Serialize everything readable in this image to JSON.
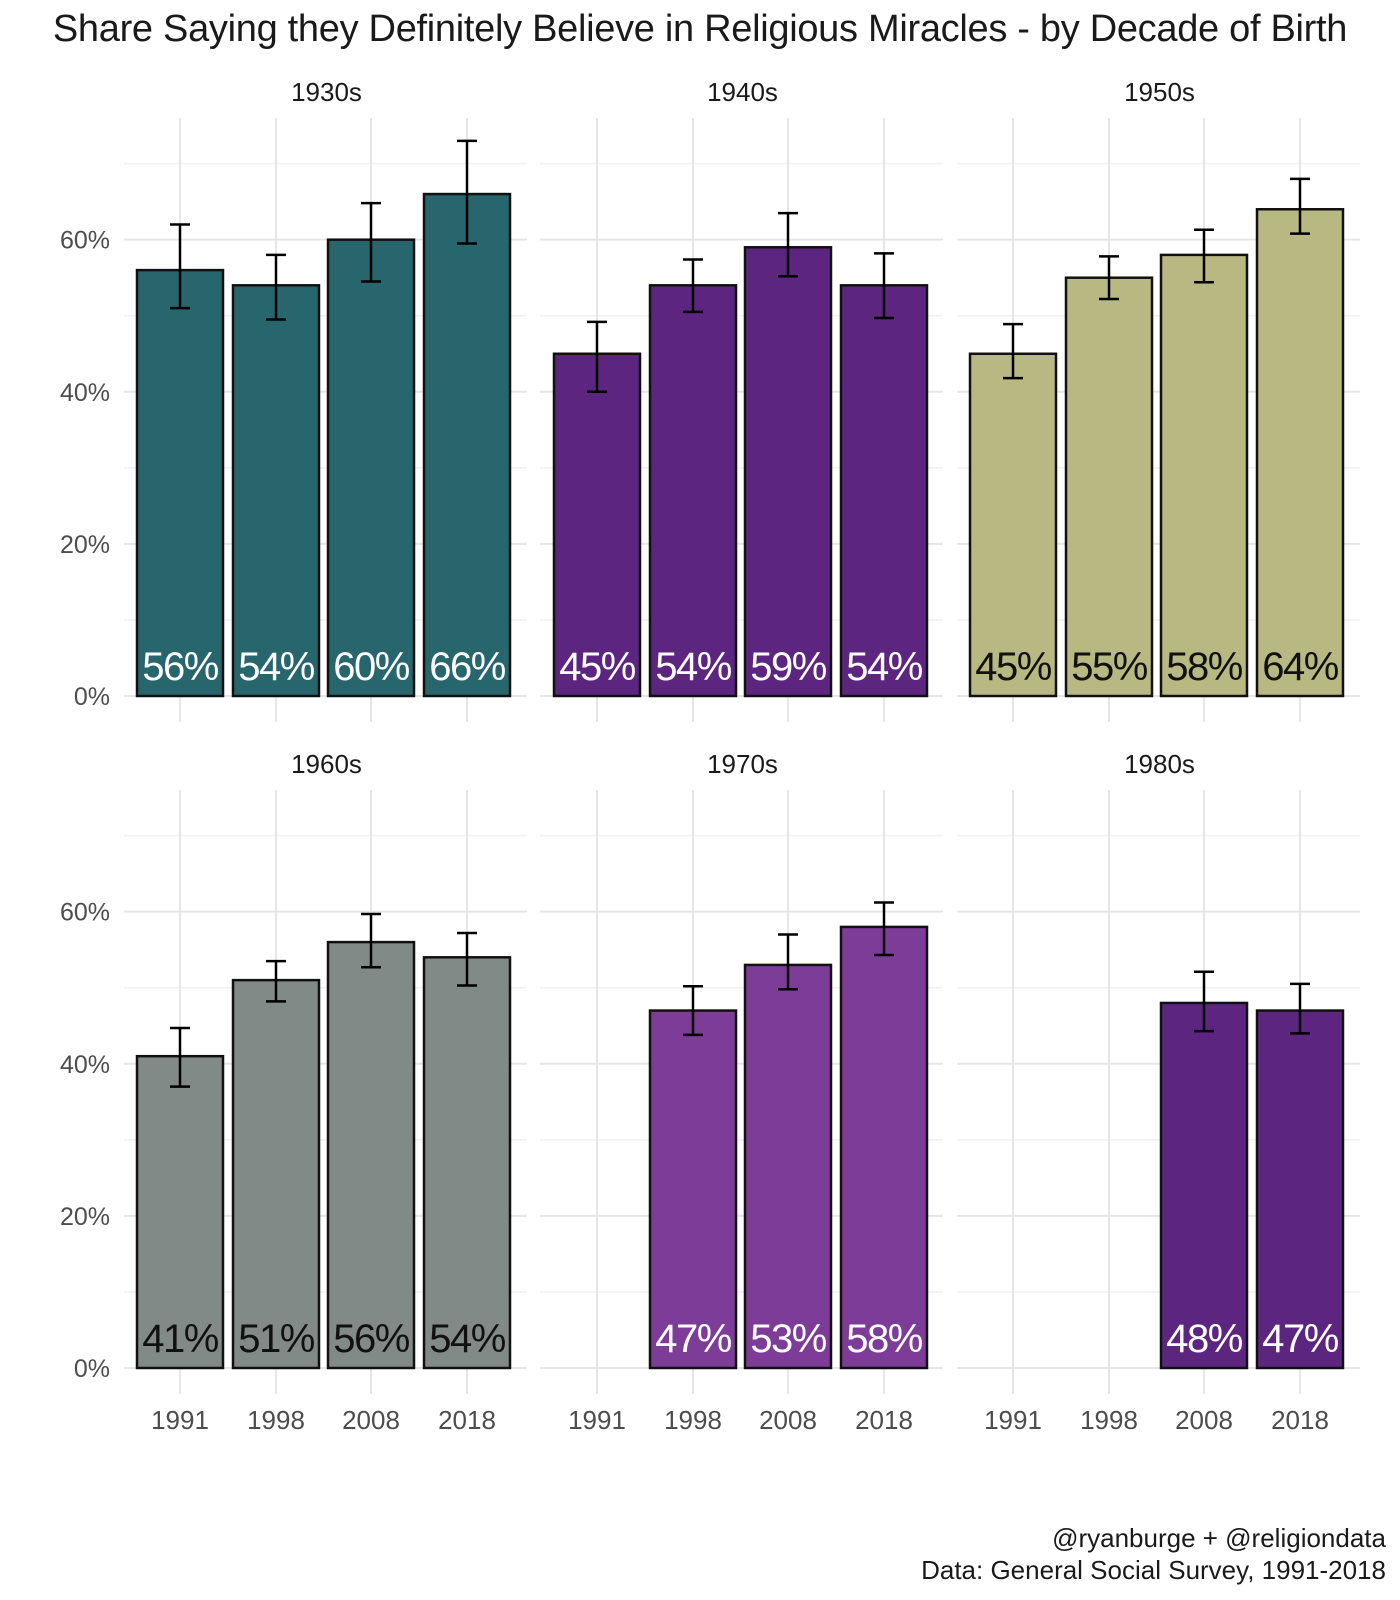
{
  "chart_data": {
    "type": "bar",
    "title": "Share Saying they Definitely Believe in Religious Miracles - by Decade of Birth",
    "xlabel": "",
    "ylabel": "",
    "ylim": [
      0,
      0.76
    ],
    "yticks": [
      0,
      0.2,
      0.4,
      0.6
    ],
    "ytick_labels": [
      "0%",
      "20%",
      "40%",
      "60%"
    ],
    "categories": [
      "1991",
      "1998",
      "2008",
      "2018"
    ],
    "grid": true,
    "facets": [
      {
        "name": "1930s",
        "color": "#28666e",
        "label_color": "#ffffff",
        "values": [
          0.56,
          0.54,
          0.6,
          0.66
        ],
        "labels": [
          "56%",
          "54%",
          "60%",
          "66%"
        ],
        "ci_low": [
          0.51,
          0.495,
          0.545,
          0.595
        ],
        "ci_high": [
          0.62,
          0.58,
          0.648,
          0.73
        ]
      },
      {
        "name": "1940s",
        "color": "#5c2580",
        "label_color": "#ffffff",
        "values": [
          0.45,
          0.54,
          0.59,
          0.54
        ],
        "labels": [
          "45%",
          "54%",
          "59%",
          "54%"
        ],
        "ci_low": [
          0.4,
          0.505,
          0.552,
          0.497
        ],
        "ci_high": [
          0.492,
          0.574,
          0.635,
          0.582
        ]
      },
      {
        "name": "1950s",
        "color": "#b8b883",
        "label_color": "#111111",
        "values": [
          0.45,
          0.55,
          0.58,
          0.64
        ],
        "labels": [
          "45%",
          "55%",
          "58%",
          "64%"
        ],
        "ci_low": [
          0.418,
          0.522,
          0.544,
          0.608
        ],
        "ci_high": [
          0.489,
          0.578,
          0.613,
          0.68
        ]
      },
      {
        "name": "1960s",
        "color": "#828a87",
        "label_color": "#111111",
        "values": [
          0.41,
          0.51,
          0.56,
          0.54
        ],
        "labels": [
          "41%",
          "51%",
          "56%",
          "54%"
        ],
        "ci_low": [
          0.37,
          0.482,
          0.527,
          0.503
        ],
        "ci_high": [
          0.447,
          0.535,
          0.597,
          0.572
        ]
      },
      {
        "name": "1970s",
        "color": "#7d3c98",
        "label_color": "#ffffff",
        "values": [
          null,
          0.47,
          0.53,
          0.58
        ],
        "labels": [
          "",
          "47%",
          "53%",
          "58%"
        ],
        "ci_low": [
          null,
          0.438,
          0.498,
          0.543
        ],
        "ci_high": [
          null,
          0.502,
          0.57,
          0.612
        ]
      },
      {
        "name": "1980s",
        "color": "#5c2580",
        "label_color": "#ffffff",
        "values": [
          null,
          null,
          0.48,
          0.47
        ],
        "labels": [
          "",
          "",
          "48%",
          "47%"
        ],
        "ci_low": [
          null,
          null,
          0.443,
          0.44
        ],
        "ci_high": [
          null,
          null,
          0.521,
          0.505
        ]
      }
    ],
    "caption": [
      "@ryanburge + @religiondata",
      "Data: General Social Survey, 1991-2018"
    ]
  }
}
